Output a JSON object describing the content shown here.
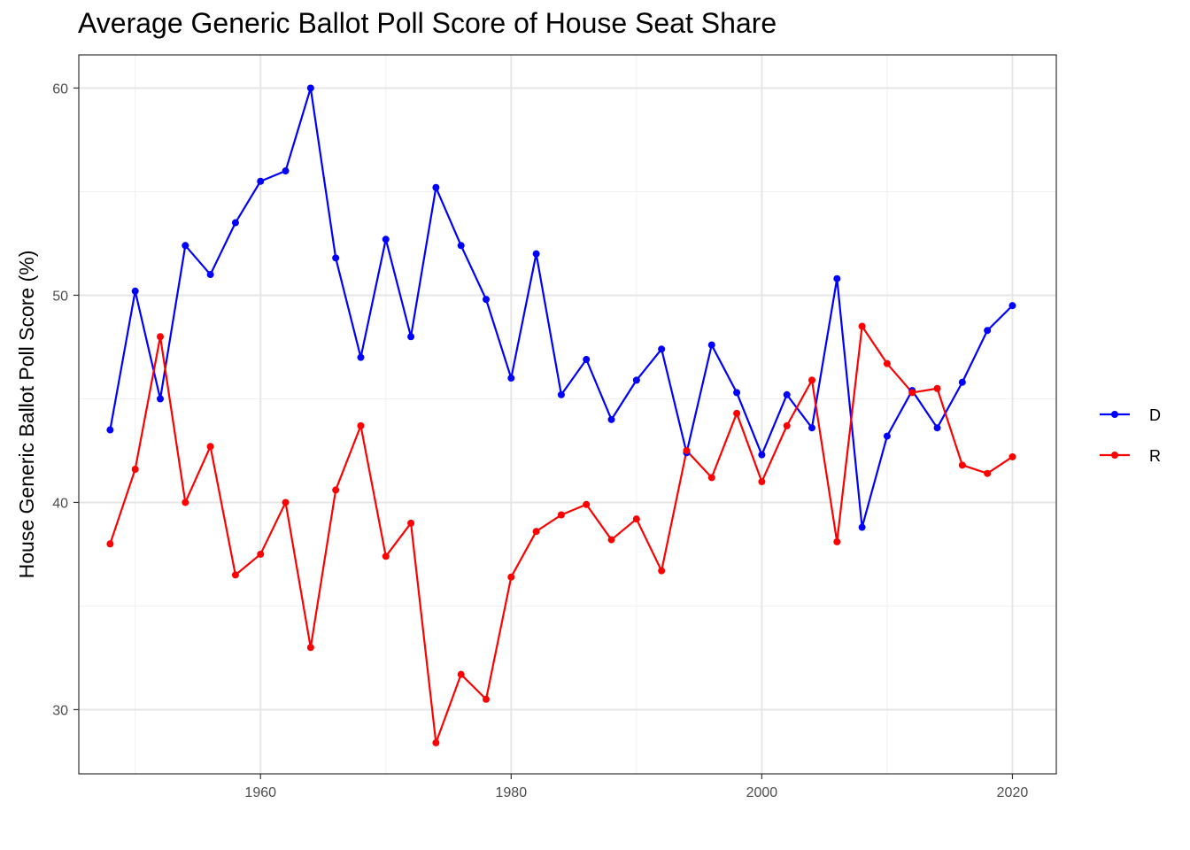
{
  "chart_data": {
    "type": "line",
    "title": "Average Generic Ballot Poll Score of House Seat Share",
    "xlabel": "",
    "ylabel": "House Generic Ballot Poll Score (%)",
    "xlim": [
      1945.5,
      2023.5
    ],
    "ylim": [
      26.9,
      61.6
    ],
    "x_ticks": [
      1960,
      1980,
      2000,
      2020
    ],
    "y_ticks": [
      30,
      40,
      50,
      60
    ],
    "grid": true,
    "legend_position": "right",
    "x": [
      1948,
      1950,
      1952,
      1954,
      1956,
      1958,
      1960,
      1962,
      1964,
      1966,
      1968,
      1970,
      1972,
      1974,
      1976,
      1978,
      1980,
      1982,
      1984,
      1986,
      1988,
      1990,
      1992,
      1994,
      1996,
      1998,
      2000,
      2002,
      2004,
      2006,
      2008,
      2010,
      2012,
      2014,
      2016,
      2018,
      2020
    ],
    "series": [
      {
        "name": "D",
        "color": "#0000ff",
        "values": [
          43.5,
          50.2,
          45.0,
          52.4,
          51.0,
          53.5,
          55.5,
          56.0,
          60.0,
          51.8,
          47.0,
          52.7,
          48.0,
          55.2,
          52.4,
          49.8,
          46.0,
          52.0,
          45.2,
          46.9,
          44.0,
          45.9,
          47.4,
          42.4,
          47.6,
          45.3,
          42.3,
          45.2,
          43.6,
          50.8,
          38.8,
          43.2,
          45.4,
          43.6,
          45.8,
          48.3,
          49.5
        ]
      },
      {
        "name": "R",
        "color": "#ff0000",
        "values": [
          38.0,
          41.6,
          48.0,
          40.0,
          42.7,
          36.5,
          37.5,
          40.0,
          33.0,
          40.6,
          43.7,
          37.4,
          39.0,
          28.4,
          31.7,
          30.5,
          36.4,
          38.6,
          39.4,
          39.9,
          38.2,
          39.2,
          36.7,
          42.5,
          41.2,
          44.3,
          41.0,
          43.7,
          45.9,
          38.1,
          48.5,
          46.7,
          45.3,
          45.5,
          41.8,
          41.4,
          42.2
        ]
      }
    ]
  }
}
